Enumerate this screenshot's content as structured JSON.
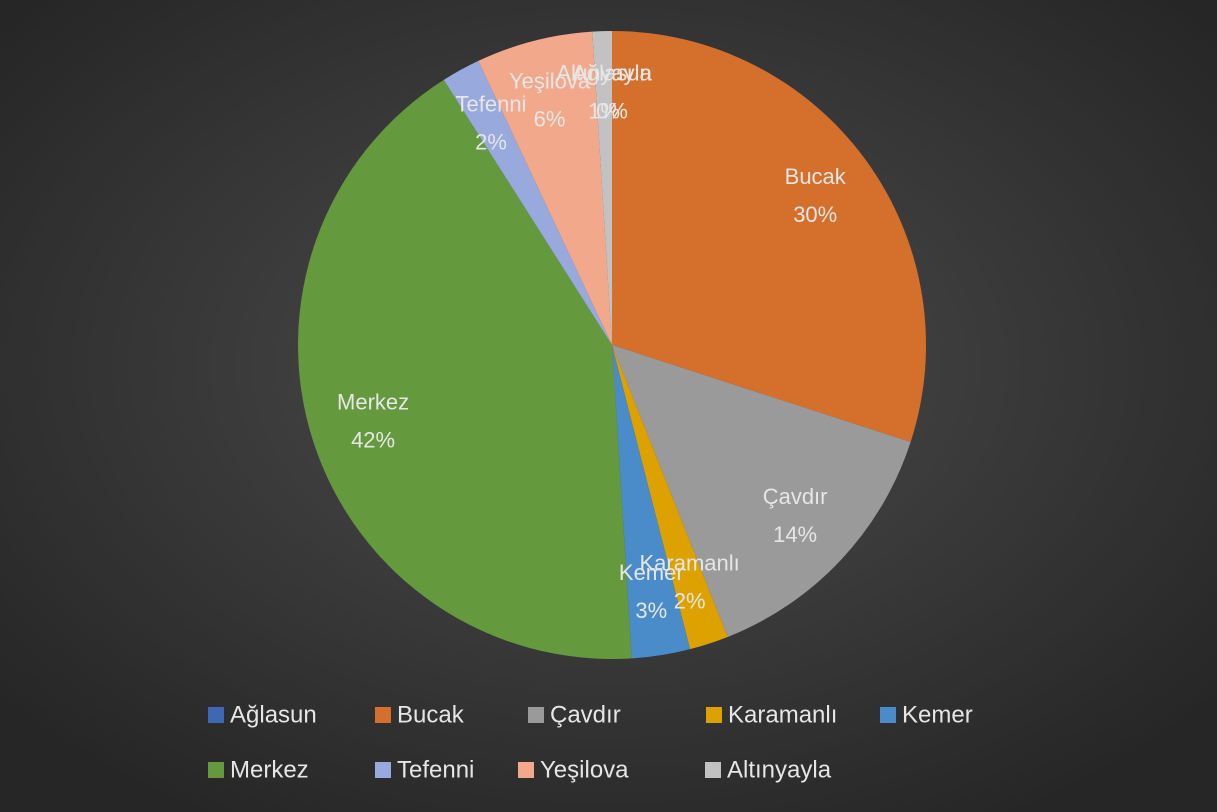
{
  "chart_data": {
    "type": "pie",
    "categories": [
      "Ağlasun",
      "Bucak",
      "Çavdır",
      "Karamanlı",
      "Kemer",
      "Merkez",
      "Tefenni",
      "Yeşilova",
      "Altınyayla"
    ],
    "values": [
      0,
      30,
      14,
      2,
      3,
      42,
      2,
      6,
      1
    ],
    "value_labels": [
      "0%",
      "30%",
      "14%",
      "2%",
      "3%",
      "42%",
      "2%",
      "6%",
      "1%"
    ],
    "colors": [
      "#3e67b5",
      "#d4702c",
      "#9a9a9a",
      "#dda100",
      "#4a8bc9",
      "#64993e",
      "#97a9dd",
      "#f2a98b",
      "#c2c2c2"
    ],
    "legend": "bottom"
  }
}
